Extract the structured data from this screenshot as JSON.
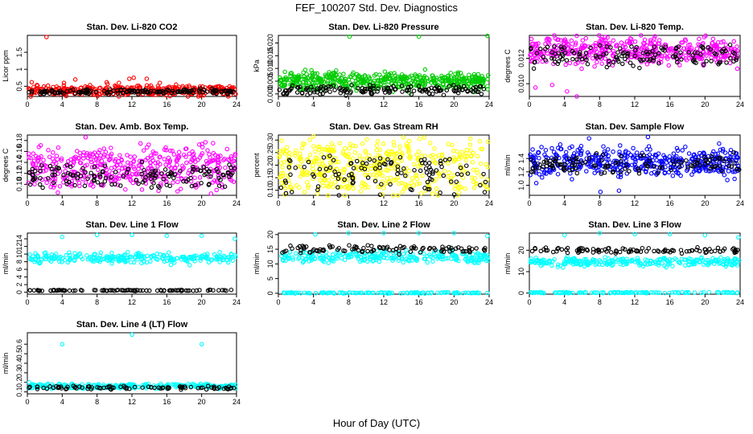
{
  "title": "FEF_100207  Std. Dev. Diagnostics",
  "xlabel": "Hour of Day (UTC)",
  "chart_data": [
    {
      "type": "scatter",
      "title": "Stan. Dev. Li-820 CO2",
      "ylabel": "Licor ppm",
      "xlim": [
        0,
        24
      ],
      "ylim": [
        0.2,
        2.0
      ],
      "xticks": [
        0,
        4,
        8,
        12,
        16,
        20,
        24
      ],
      "yticks": [
        0.5,
        1.0,
        1.5
      ],
      "colors": [
        "#ff0000",
        "#000000"
      ],
      "series": [
        {
          "n": 420,
          "lo": 0.3,
          "hi": 0.45,
          "sd": 0.12
        },
        {
          "n": 150,
          "lo": 0.3,
          "hi": 0.38,
          "sd": 0.05
        }
      ],
      "outliers": [
        {
          "x": 2.2,
          "y": 1.95
        },
        {
          "x": 0.5,
          "y": 0.62
        },
        {
          "x": 4.2,
          "y": 0.6
        },
        {
          "x": 5.5,
          "y": 0.7
        },
        {
          "x": 9.1,
          "y": 0.62
        },
        {
          "x": 10.5,
          "y": 0.6
        },
        {
          "x": 11.7,
          "y": 0.72
        },
        {
          "x": 12.2,
          "y": 0.75
        },
        {
          "x": 13.7,
          "y": 0.72
        },
        {
          "x": 15.2,
          "y": 0.6
        },
        {
          "x": 23.9,
          "y": 0.27
        }
      ]
    },
    {
      "type": "scatter",
      "title": "Stan. Dev. Li-820 Pressure",
      "ylabel": "kPa",
      "xlim": [
        0,
        24
      ],
      "ylim": [
        -0.001,
        0.023
      ],
      "xticks": [
        0,
        4,
        8,
        12,
        16,
        20,
        24
      ],
      "yticks": [
        0.0,
        0.005,
        0.01,
        0.015,
        0.02
      ],
      "yticklabels": [
        "0.000",
        "0.005",
        "0.010",
        "0.015",
        "0.020"
      ],
      "colors": [
        "#00cc00",
        "#000000"
      ],
      "series": [
        {
          "n": 500,
          "lo": 0.003,
          "hi": 0.007,
          "sd": 0.0025
        },
        {
          "n": 150,
          "lo": 0.0005,
          "hi": 0.0025,
          "sd": 0.0015
        }
      ],
      "outliers": [
        {
          "x": 8.1,
          "y": 0.0225
        },
        {
          "x": 16.0,
          "y": 0.0225
        },
        {
          "x": 23.8,
          "y": 0.0228
        }
      ]
    },
    {
      "type": "scatter",
      "title": "Stan. Dev. Li-820 Temp.",
      "ylabel": "degrees C",
      "xlim": [
        0,
        24
      ],
      "ylim": [
        0.009,
        0.0138
      ],
      "xticks": [
        0,
        4,
        8,
        12,
        16,
        20,
        24
      ],
      "yticks": [
        0.01,
        0.012
      ],
      "yticklabels": [
        "0.010",
        "0.012"
      ],
      "colors": [
        "#ff00ff",
        "#000000"
      ],
      "series": [
        {
          "n": 450,
          "lo": 0.0118,
          "hi": 0.0133,
          "sd": 0.0006
        },
        {
          "n": 140,
          "lo": 0.0116,
          "hi": 0.013,
          "sd": 0.0004
        }
      ],
      "outliers": [
        {
          "x": 0.7,
          "y": 0.0097
        },
        {
          "x": 2.6,
          "y": 0.0099
        },
        {
          "x": 4.3,
          "y": 0.0094
        },
        {
          "x": 5.4,
          "y": 0.0088
        }
      ]
    },
    {
      "type": "scatter",
      "title": "Stan. Dev. Amb. Box Temp.",
      "ylabel": "degrees C",
      "xlim": [
        0,
        24
      ],
      "ylim": [
        0.08,
        0.19
      ],
      "xticks": [
        0,
        4,
        8,
        12,
        16,
        20,
        24
      ],
      "yticks": [
        0.1,
        0.12,
        0.14,
        0.16,
        0.18
      ],
      "yticklabels": [
        "0.10",
        "0.12",
        "0.14",
        "0.16",
        "0.18"
      ],
      "colors": [
        "#ff00ff",
        "#000000"
      ],
      "series": [
        {
          "n": 450,
          "lo": 0.1,
          "hi": 0.16,
          "sd": 0.02
        },
        {
          "n": 140,
          "lo": 0.1,
          "hi": 0.13,
          "sd": 0.012
        }
      ],
      "outliers": [
        {
          "x": 21.3,
          "y": 0.175
        },
        {
          "x": 8.8,
          "y": 0.165
        },
        {
          "x": 3.5,
          "y": 0.085
        }
      ]
    },
    {
      "type": "scatter",
      "title": "Stan. Dev. Gas Stream RH",
      "ylabel": "percent",
      "xlim": [
        0,
        24
      ],
      "ylim": [
        0.08,
        0.32
      ],
      "xticks": [
        0,
        4,
        8,
        12,
        16,
        20,
        24
      ],
      "yticks": [
        0.1,
        0.15,
        0.2,
        0.25,
        0.3
      ],
      "yticklabels": [
        "0.10",
        "0.15",
        "0.20",
        "0.25",
        "0.30"
      ],
      "colors": [
        "#ffff00",
        "#000000"
      ],
      "series": [
        {
          "n": 450,
          "lo": 0.1,
          "hi": 0.28,
          "sd": 0.05
        },
        {
          "n": 110,
          "lo": 0.1,
          "hi": 0.22,
          "sd": 0.04
        }
      ],
      "outliers": [
        {
          "x": 4.0,
          "y": 0.315
        },
        {
          "x": 2.8,
          "y": 0.285
        },
        {
          "x": 11.3,
          "y": 0.295
        }
      ]
    },
    {
      "type": "scatter",
      "title": "Stan. Dev. Sample Flow",
      "ylabel": "ml/min",
      "xlim": [
        0,
        24
      ],
      "ylim": [
        0.85,
        1.75
      ],
      "xticks": [
        0,
        4,
        8,
        12,
        16,
        20,
        24
      ],
      "yticks": [
        1.0,
        1.2,
        1.4
      ],
      "yticklabels": [
        "1.0",
        "1.2",
        "1.4"
      ],
      "colors": [
        "#0000ff",
        "#000000"
      ],
      "series": [
        {
          "n": 450,
          "lo": 1.2,
          "hi": 1.5,
          "sd": 0.12
        },
        {
          "n": 120,
          "lo": 1.2,
          "hi": 1.4,
          "sd": 0.08
        }
      ],
      "outliers": [
        {
          "x": 8.1,
          "y": 0.9
        },
        {
          "x": 6.8,
          "y": 1.7
        },
        {
          "x": 13.5,
          "y": 1.72
        },
        {
          "x": 10.2,
          "y": 0.92
        }
      ]
    },
    {
      "type": "scatter",
      "title": "Stan. Dev. Line 1 Flow",
      "ylabel": "ml/min",
      "xlim": [
        0,
        24
      ],
      "ylim": [
        -0.5,
        15.5
      ],
      "xticks": [
        0,
        4,
        8,
        12,
        16,
        20,
        24
      ],
      "yticks": [
        0,
        2,
        4,
        6,
        8,
        10,
        12,
        14
      ],
      "colors": [
        "#00ffff",
        "#000000"
      ],
      "series": [
        {
          "n": 260,
          "lo": 8,
          "hi": 10,
          "sd": 0.8
        },
        {
          "n": 90,
          "lo": 0.4,
          "hi": 0.6,
          "sd": 0.1
        }
      ],
      "outliers": [
        {
          "x": 4.0,
          "y": 14.5
        },
        {
          "x": 8.0,
          "y": 15
        },
        {
          "x": 12.0,
          "y": 15
        },
        {
          "x": 16.0,
          "y": 14.8
        },
        {
          "x": 20.0,
          "y": 14.8
        },
        {
          "x": 23.8,
          "y": 14
        }
      ]
    },
    {
      "type": "scatter",
      "title": "Stan. Dev. Line 2 Flow",
      "ylabel": "ml/min",
      "xlim": [
        0,
        24
      ],
      "ylim": [
        -0.3,
        20.5
      ],
      "xticks": [
        0,
        4,
        8,
        12,
        16,
        20,
        24
      ],
      "yticks": [
        0,
        5,
        10,
        15,
        20
      ],
      "colors": [
        "#00ffff",
        "#000000"
      ],
      "series": [
        {
          "n": 260,
          "lo": 11,
          "hi": 14,
          "sd": 1.0
        },
        {
          "n": 100,
          "lo": 14,
          "hi": 16,
          "sd": 0.6
        },
        {
          "n": 120,
          "lo": 0,
          "hi": 0.3,
          "sd": 0.1
        }
      ],
      "outliers": [
        {
          "x": 4.2,
          "y": 20
        },
        {
          "x": 8.0,
          "y": 20.5
        },
        {
          "x": 12.0,
          "y": 20.5
        },
        {
          "x": 16.0,
          "y": 20.5
        },
        {
          "x": 20.0,
          "y": 20.5
        },
        {
          "x": 23.8,
          "y": 19.5
        }
      ]
    },
    {
      "type": "scatter",
      "title": "Stan. Dev. Line 3 Flow",
      "ylabel": "ml/min",
      "xlim": [
        0,
        24
      ],
      "ylim": [
        -0.5,
        28
      ],
      "xticks": [
        0,
        4,
        8,
        12,
        16,
        20,
        24
      ],
      "yticks": [
        0,
        10,
        20
      ],
      "colors": [
        "#00ffff",
        "#000000"
      ],
      "series": [
        {
          "n": 260,
          "lo": 13,
          "hi": 16,
          "sd": 1.0
        },
        {
          "n": 100,
          "lo": 19,
          "hi": 21,
          "sd": 0.7
        },
        {
          "n": 120,
          "lo": 0,
          "hi": 0.4,
          "sd": 0.1
        }
      ],
      "outliers": [
        {
          "x": 4.0,
          "y": 27
        },
        {
          "x": 8.0,
          "y": 28
        },
        {
          "x": 12.0,
          "y": 27.5
        },
        {
          "x": 16.0,
          "y": 27.5
        },
        {
          "x": 20.0,
          "y": 27
        },
        {
          "x": 23.8,
          "y": 26
        }
      ]
    },
    {
      "type": "scatter",
      "title": "Stan. Dev. Line 4 (LT) Flow",
      "ylabel": "ml/min",
      "xlim": [
        0,
        24
      ],
      "ylim": [
        0.08,
        0.72
      ],
      "xticks": [
        0,
        4,
        8,
        12,
        16,
        20,
        24
      ],
      "yticks": [
        0.1,
        0.2,
        0.3,
        0.4,
        0.5,
        0.6
      ],
      "colors": [
        "#00ffff",
        "#000000"
      ],
      "series": [
        {
          "n": 260,
          "lo": 0.14,
          "hi": 0.18,
          "sd": 0.015
        },
        {
          "n": 90,
          "lo": 0.13,
          "hi": 0.16,
          "sd": 0.01
        }
      ],
      "outliers": [
        {
          "x": 4.0,
          "y": 0.6
        },
        {
          "x": 12.0,
          "y": 0.7
        },
        {
          "x": 20.0,
          "y": 0.6
        },
        {
          "x": 0.2,
          "y": 0.2
        }
      ]
    }
  ]
}
